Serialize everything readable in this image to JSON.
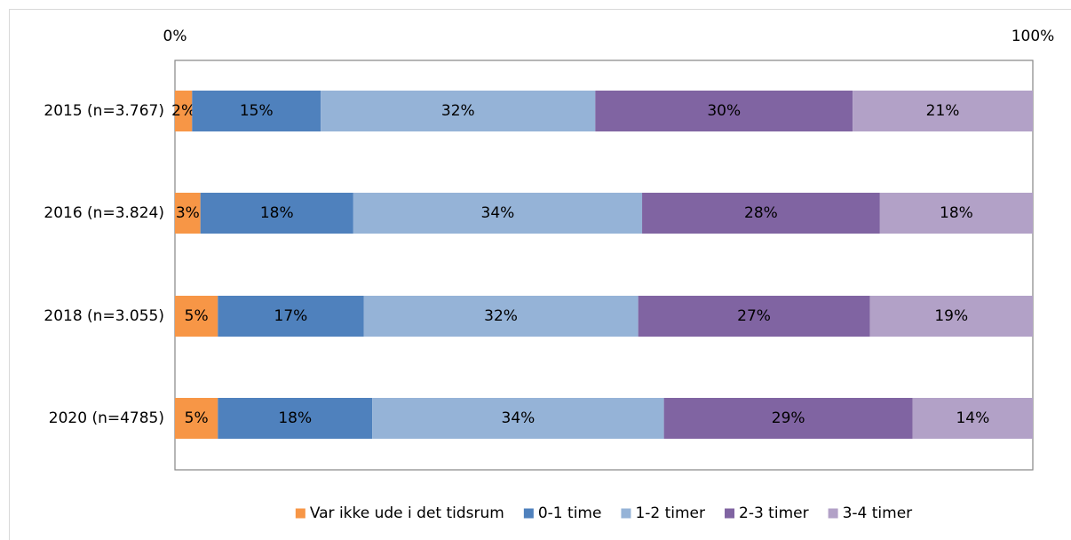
{
  "chart_data": {
    "type": "bar",
    "orientation": "horizontal",
    "stacked": true,
    "title": "",
    "xlabel": "",
    "ylabel": "",
    "xlim": [
      0,
      100
    ],
    "x_tick_labels": [
      "0%",
      "100%"
    ],
    "categories": [
      "2015 (n=3.767)",
      "2016 (n=3.824)",
      "2018 (n=3.055)",
      "2020 (n=4785)"
    ],
    "series": [
      {
        "name": "Var ikke ude i det tidsrum",
        "color": "#f79646",
        "values": [
          2,
          3,
          5,
          5
        ]
      },
      {
        "name": "0-1 time",
        "color": "#4f81bd",
        "values": [
          15,
          18,
          17,
          18
        ]
      },
      {
        "name": "1-2 timer",
        "color": "#95b3d7",
        "values": [
          32,
          34,
          32,
          34
        ]
      },
      {
        "name": "2-3 timer",
        "color": "#8064a2",
        "values": [
          30,
          28,
          27,
          29
        ]
      },
      {
        "name": "3-4 timer",
        "color": "#b2a1c7",
        "values": [
          21,
          18,
          19,
          14
        ]
      }
    ],
    "data_label_suffix": "%",
    "legend_position": "bottom",
    "grid": false
  }
}
